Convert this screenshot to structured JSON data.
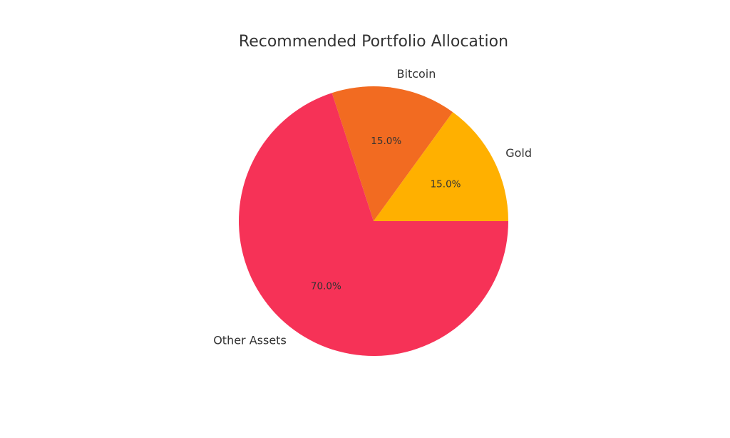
{
  "chart_data": {
    "type": "pie",
    "title": "Recommended Portfolio Allocation",
    "slices": [
      {
        "label": "Gold",
        "value": 15.0,
        "pct_label": "15.0%",
        "color": "#ffb000"
      },
      {
        "label": "Bitcoin",
        "value": 15.0,
        "pct_label": "15.0%",
        "color": "#f26b21"
      },
      {
        "label": "Other Assets",
        "value": 70.0,
        "pct_label": "70.0%",
        "color": "#f63257"
      }
    ],
    "start_angle": 0,
    "direction": "counterclockwise",
    "legend": "none"
  }
}
